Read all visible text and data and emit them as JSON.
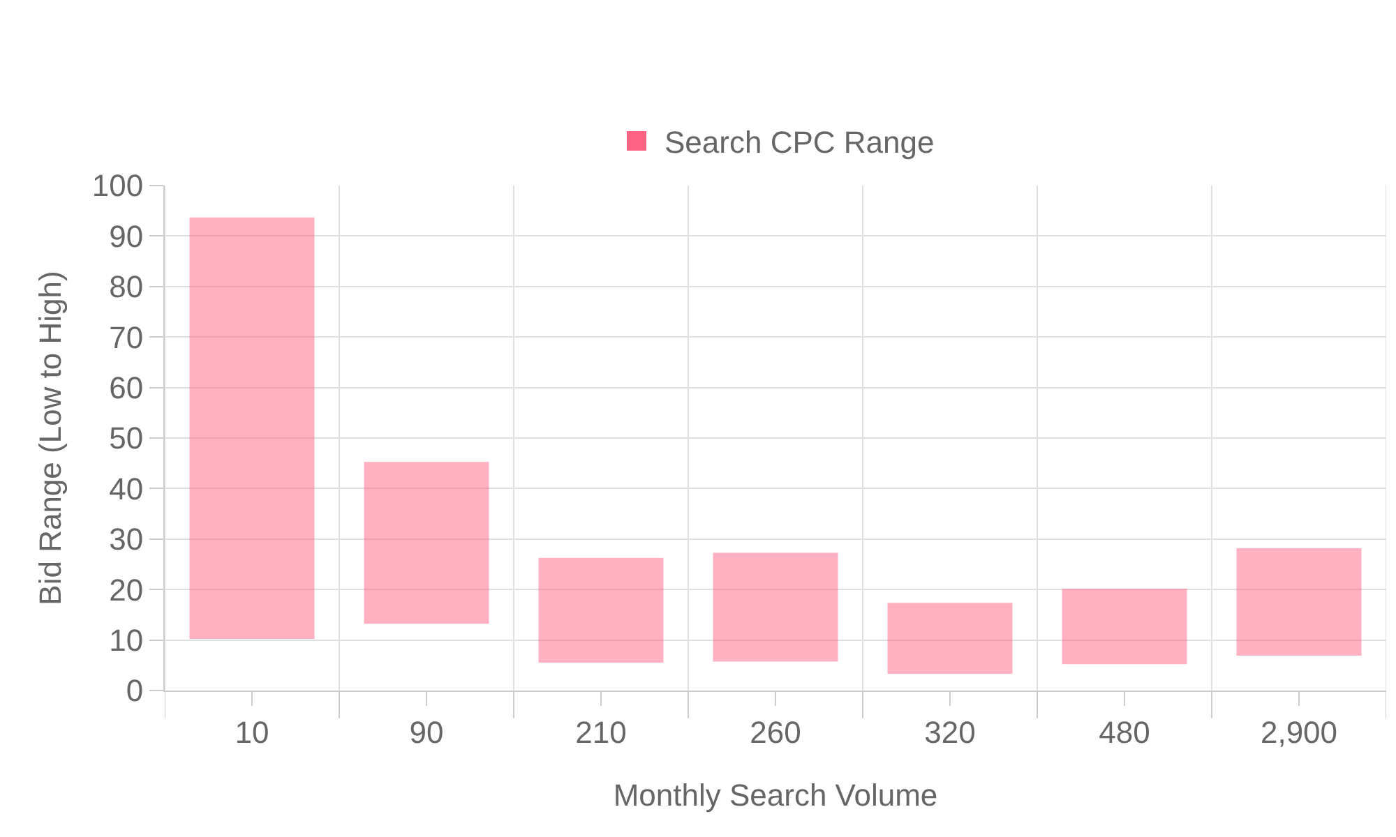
{
  "chart_data": {
    "type": "bar",
    "xlabel": "Monthly Search Volume",
    "ylabel": "Bid Range (Low to High)",
    "categories": [
      "10",
      "90",
      "210",
      "260",
      "320",
      "480",
      "2,900"
    ],
    "series": [
      {
        "name": "Search CPC Range",
        "color": "#ff6384",
        "values": [
          82.9,
          31.5,
          20.2,
          21,
          13.5,
          14.4,
          20.7
        ],
        "base": [
          10.5,
          13.5,
          5.8,
          6,
          3.6,
          5.5,
          7.2
        ]
      }
    ],
    "ylim": [
      0,
      100
    ],
    "yticks": [
      0,
      10,
      20,
      30,
      40,
      50,
      60,
      70,
      80,
      90,
      100
    ],
    "grid": true,
    "legend": "top"
  }
}
